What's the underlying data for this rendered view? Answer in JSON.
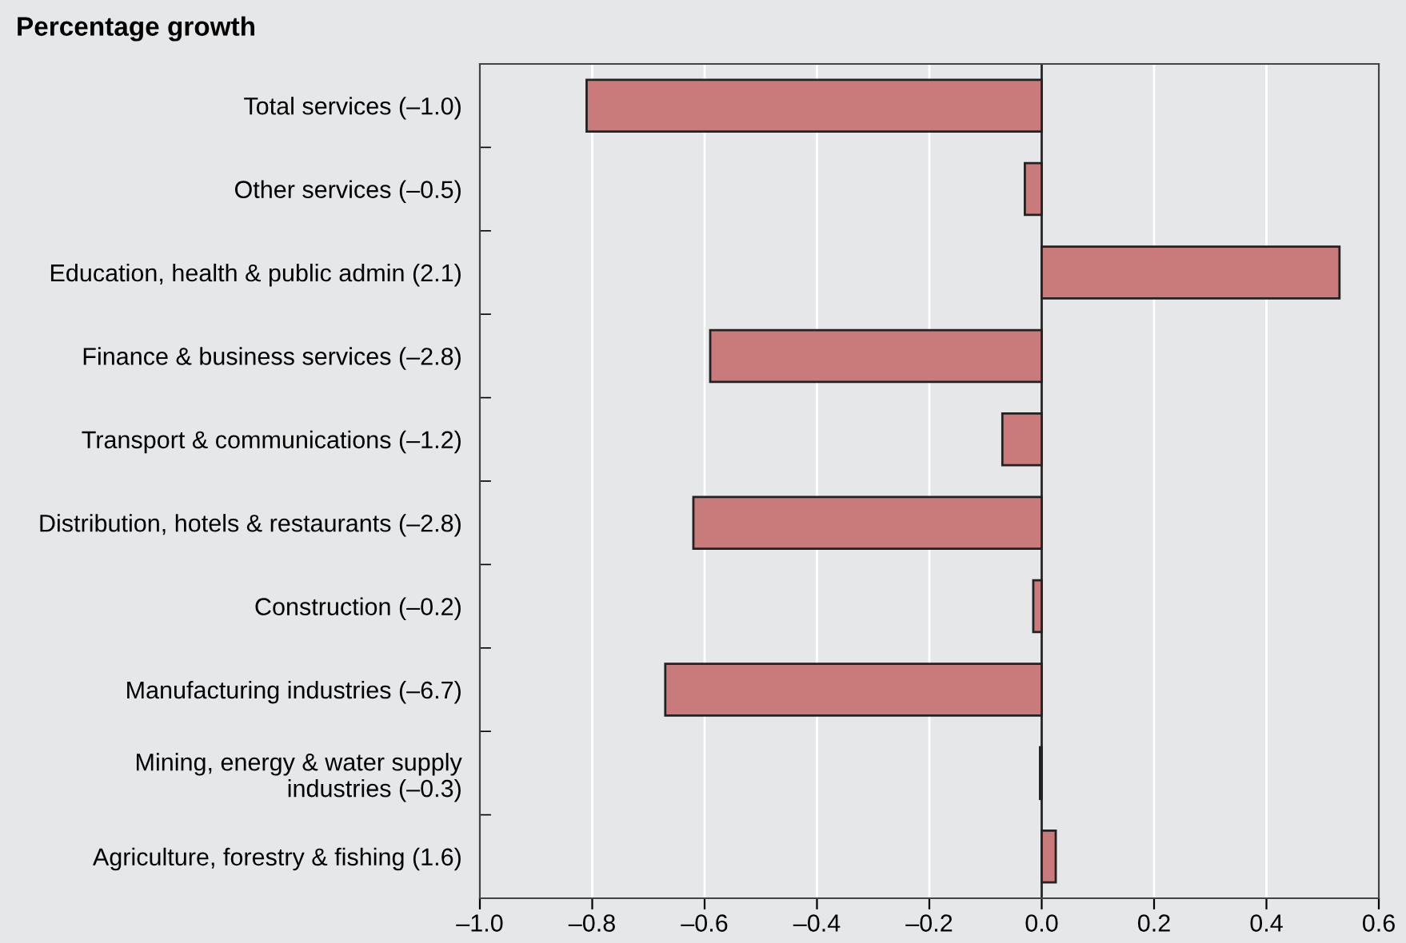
{
  "chart_data": {
    "type": "bar",
    "orientation": "horizontal",
    "title": "Percentage growth",
    "categories": [
      "Total services (–1.0)",
      "Other services (–0.5)",
      "Education, health & public admin (2.1)",
      "Finance & business services (–2.8)",
      "Transport & communications (–1.2)",
      "Distribution, hotels & restaurants (–2.8)",
      "Construction (–0.2)",
      "Manufacturing industries (–6.7)",
      "Mining, energy & water supply\nindustries (–0.3)",
      "Agriculture, forestry & fishing (1.6)"
    ],
    "values": [
      -0.81,
      -0.03,
      0.53,
      -0.59,
      -0.07,
      -0.62,
      -0.015,
      -0.67,
      -0.003,
      0.025
    ],
    "color": "#c87b7a",
    "xlim": [
      -1.0,
      0.6
    ],
    "xticks": [
      {
        "value": -1.0,
        "label": "–1.0"
      },
      {
        "value": -0.8,
        "label": "–0.8"
      },
      {
        "value": -0.6,
        "label": "–0.6"
      },
      {
        "value": -0.4,
        "label": "–0.4"
      },
      {
        "value": -0.2,
        "label": "–0.2"
      },
      {
        "value": 0.0,
        "label": "0.0"
      },
      {
        "value": 0.2,
        "label": "0.2"
      },
      {
        "value": 0.4,
        "label": "0.4"
      },
      {
        "value": 0.6,
        "label": "0.6"
      }
    ],
    "grid": "x"
  }
}
